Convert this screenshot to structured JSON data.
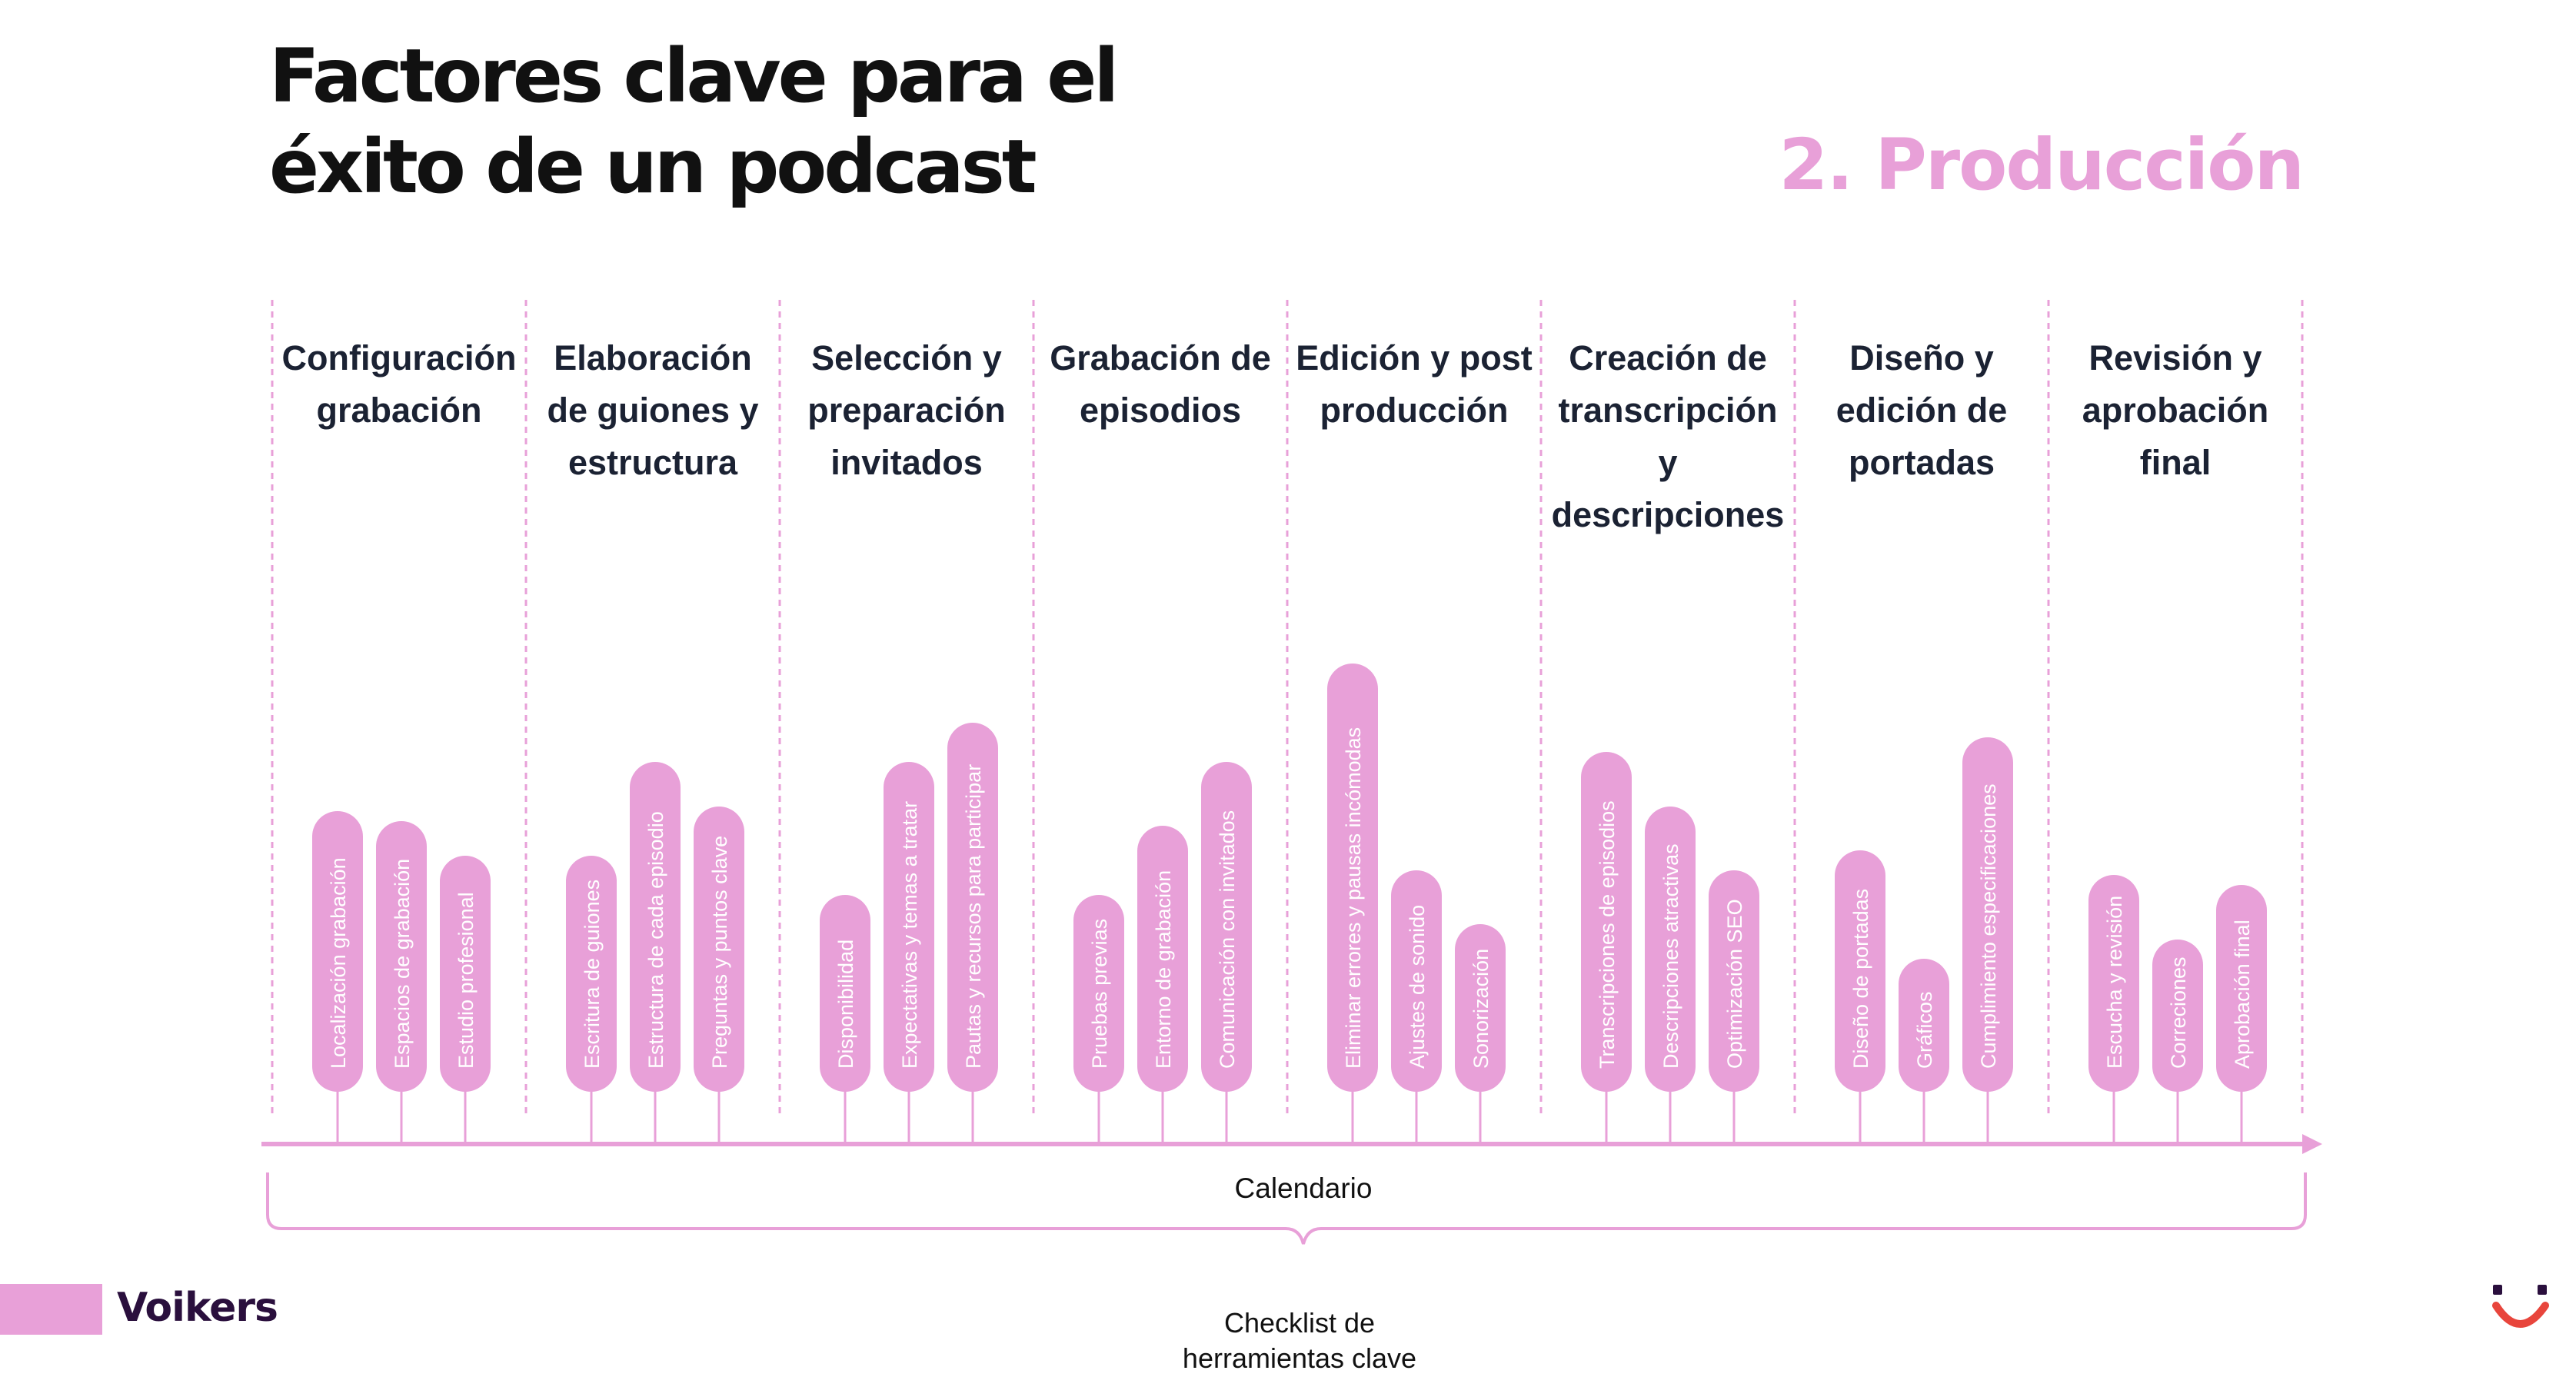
{
  "title": {
    "line1": "Factores clave para el",
    "line2": "éxito de un podcast"
  },
  "stage_title": "2. Producción",
  "columns": [
    {
      "heading": [
        "Configuración",
        "grabación"
      ],
      "items": [
        {
          "label": "Localización grabación",
          "height_fraction": 0.57
        },
        {
          "label": "Espacios de grabación",
          "height_fraction": 0.55
        },
        {
          "label": "Estudio profesional",
          "height_fraction": 0.48
        }
      ]
    },
    {
      "heading": [
        "Elaboración",
        "de guiones y",
        "estructura"
      ],
      "items": [
        {
          "label": "Escritura de guiones",
          "height_fraction": 0.48
        },
        {
          "label": "Estructura de cada episodio",
          "height_fraction": 0.67
        },
        {
          "label": "Preguntas y puntos clave",
          "height_fraction": 0.58
        }
      ]
    },
    {
      "heading": [
        "Selección y",
        "preparación",
        "invitados"
      ],
      "items": [
        {
          "label": "Disponibilidad",
          "height_fraction": 0.4
        },
        {
          "label": "Expectativas y temas a tratar",
          "height_fraction": 0.67
        },
        {
          "label": "Pautas y recursos para participar",
          "height_fraction": 0.75
        }
      ]
    },
    {
      "heading": [
        "Grabación de",
        "episodios"
      ],
      "items": [
        {
          "label": "Pruebas previas",
          "height_fraction": 0.4
        },
        {
          "label": "Entorno de grabación",
          "height_fraction": 0.54
        },
        {
          "label": "Comunicación con invitados",
          "height_fraction": 0.67
        }
      ]
    },
    {
      "heading": [
        "Edición y post",
        "producción"
      ],
      "items": [
        {
          "label": "Eliminar errores y pausas incómodas",
          "height_fraction": 0.87
        },
        {
          "label": "Ajustes de sonido",
          "height_fraction": 0.45
        },
        {
          "label": "Sonorización",
          "height_fraction": 0.34
        }
      ]
    },
    {
      "heading": [
        "Creación de",
        "transcripción",
        "y",
        "descripciones"
      ],
      "items": [
        {
          "label": "Transcripciones de episodios",
          "height_fraction": 0.69
        },
        {
          "label": "Descripciones atractivas",
          "height_fraction": 0.58
        },
        {
          "label": "Optimización SEO",
          "height_fraction": 0.45
        }
      ]
    },
    {
      "heading": [
        "Diseño y",
        "edición de",
        "portadas"
      ],
      "items": [
        {
          "label": "Diseño de portadas",
          "height_fraction": 0.49
        },
        {
          "label": "Gráficos",
          "height_fraction": 0.27
        },
        {
          "label": "Cumplimiento especificaciones",
          "height_fraction": 0.72
        }
      ]
    },
    {
      "heading": [
        "Revisión y",
        "aprobación",
        "final"
      ],
      "items": [
        {
          "label": "Escucha y revisión",
          "height_fraction": 0.44
        },
        {
          "label": "Correciones",
          "height_fraction": 0.31
        },
        {
          "label": "Aprobación final",
          "height_fraction": 0.42
        }
      ]
    }
  ],
  "timeline_label": "Calendario",
  "checklist_label": [
    "Checklist de",
    "herramientas clave"
  ],
  "brand": "Voikers",
  "colors": {
    "accent": "#e8a0d8",
    "text": "#111111",
    "heading": "#1b2233",
    "brand_text": "#2a0f3d",
    "logo_red": "#e8453c"
  },
  "icons": [
    "smile-logo-icon",
    "timeline-arrow-icon"
  ]
}
